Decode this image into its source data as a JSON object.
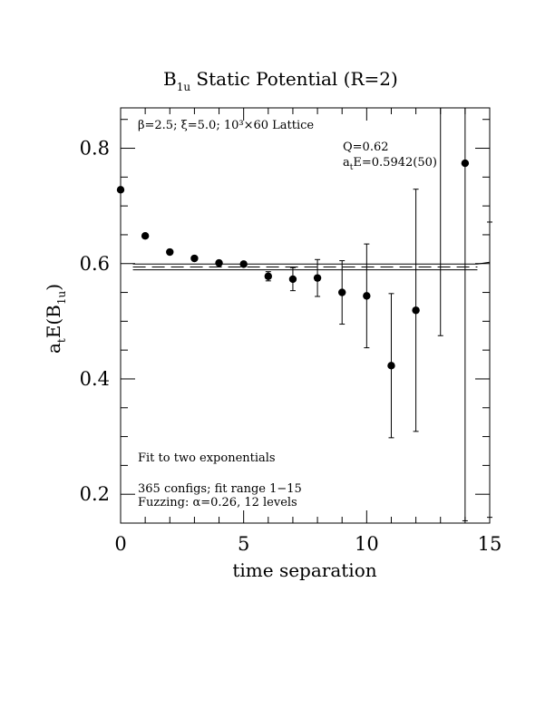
{
  "chart_data": {
    "type": "scatter",
    "title_main": "B",
    "title_sub": "1u",
    "title_rest": " Static Potential (R=2)",
    "xlabel": "time separation",
    "ylabel_main": "a",
    "ylabel_sub1": "t",
    "ylabel_mid": "E(B",
    "ylabel_sub2": "1u",
    "ylabel_end": ")",
    "xlim": [
      0,
      15
    ],
    "ylim": [
      0.15,
      0.87
    ],
    "x_ticks": [
      0,
      5,
      10,
      15
    ],
    "x_tick_labels": [
      "0",
      "5",
      "10",
      "15"
    ],
    "y_ticks": [
      0.2,
      0.4,
      0.6,
      0.8
    ],
    "y_tick_labels": [
      "0.2",
      "0.4",
      "0.6",
      "0.8"
    ],
    "lattice_note": "β=2.5; ξ=5.0; 10³×60 Lattice",
    "fit_quality": "Q=0.62",
    "fit_energy_main": "a",
    "fit_energy_sub": "t",
    "fit_energy_rest": "E=0.5942(50)",
    "fit_note": "Fit to two exponentials",
    "configs_note": "365 configs; fit range 1−15",
    "fuzzing_note": "Fuzzing: α=0.26, 12 levels",
    "fit_band": {
      "central": 0.5942,
      "error": 0.005,
      "x_range": [
        0.5,
        14.5
      ]
    },
    "points": [
      {
        "x": 0,
        "y": 0.728,
        "err": 0.0
      },
      {
        "x": 1,
        "y": 0.648,
        "err": 0.0
      },
      {
        "x": 2,
        "y": 0.62,
        "err": 0.0
      },
      {
        "x": 3,
        "y": 0.609,
        "err": 0.002
      },
      {
        "x": 4,
        "y": 0.601,
        "err": 0.003
      },
      {
        "x": 5,
        "y": 0.599,
        "err": 0.004
      },
      {
        "x": 6,
        "y": 0.578,
        "err": 0.008
      },
      {
        "x": 7,
        "y": 0.573,
        "err": 0.02
      },
      {
        "x": 8,
        "y": 0.575,
        "err": 0.032
      },
      {
        "x": 9,
        "y": 0.55,
        "err": 0.055
      },
      {
        "x": 10,
        "y": 0.544,
        "err": 0.09
      },
      {
        "x": 11,
        "y": 0.423,
        "err": 0.125
      },
      {
        "x": 12,
        "y": 0.519,
        "err": 0.21
      },
      {
        "x": 13,
        "y": 0.87,
        "err_low": 0.395,
        "err_high": 0.0,
        "no_marker": true
      },
      {
        "x": 14,
        "y": 0.774,
        "err_low": 0.62,
        "err_high": 0.2
      },
      {
        "x": 15,
        "y": 0.16,
        "err_low": 0.0,
        "err_high": 0.512,
        "no_marker": true
      }
    ]
  }
}
